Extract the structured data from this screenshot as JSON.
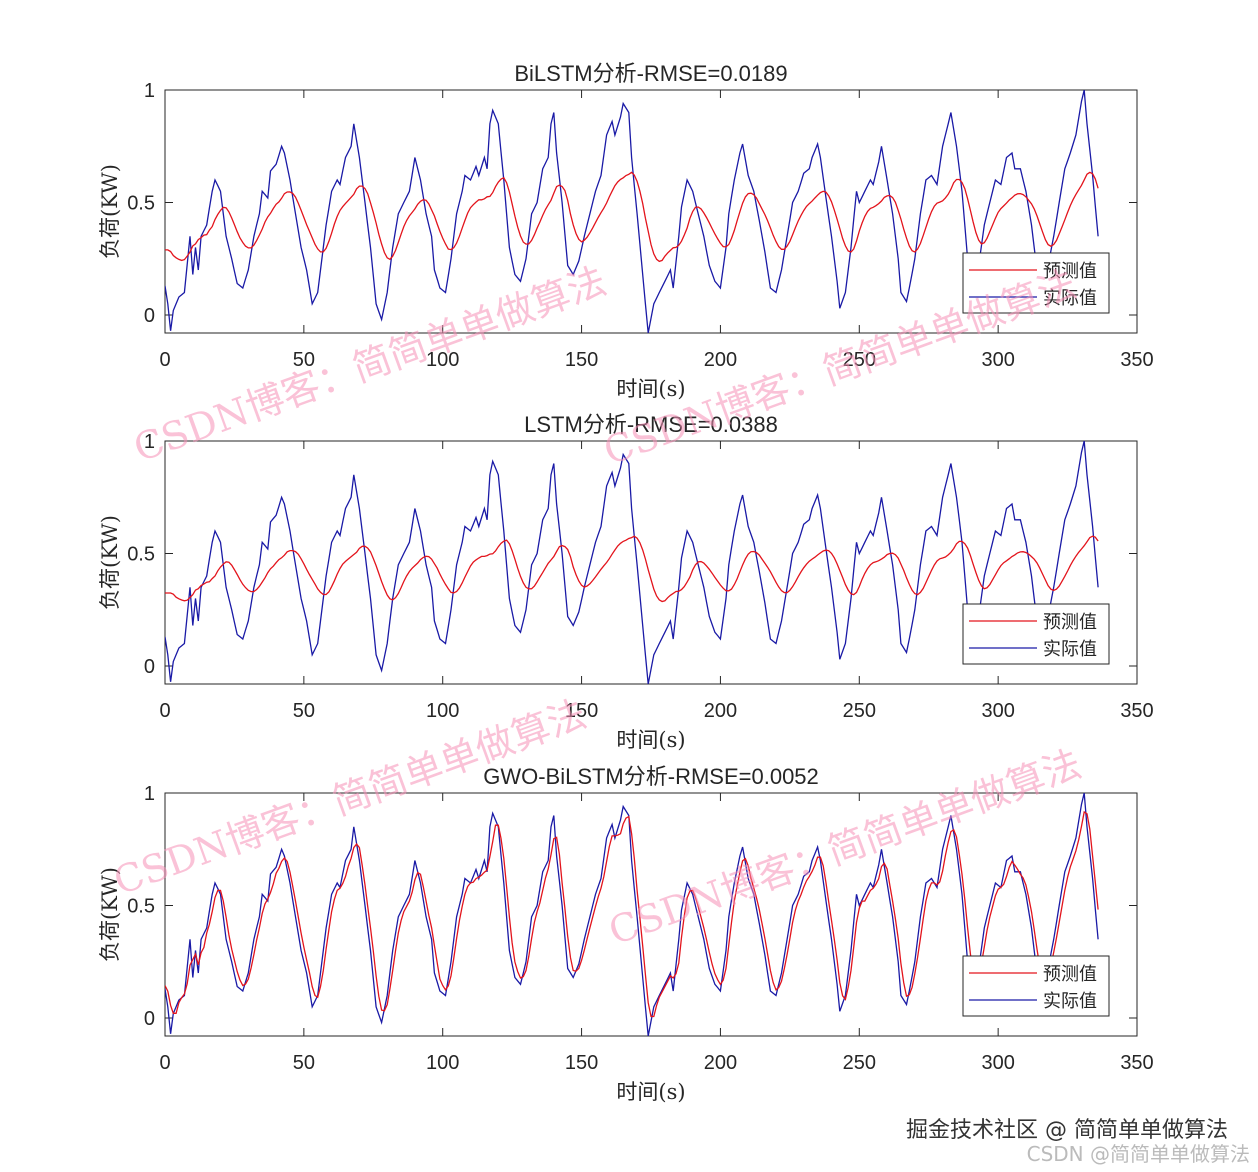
{
  "chart_data": [
    {
      "type": "line",
      "title": "BiLSTM分析-RMSE=0.0189",
      "xlabel": "时间(s)",
      "ylabel": "负荷(KW)",
      "xlim": [
        0,
        350
      ],
      "ylim": [
        -0.08,
        1.0
      ],
      "xticks": [
        0,
        50,
        100,
        150,
        200,
        250,
        300,
        350
      ],
      "yticks": [
        0,
        0.5,
        1
      ],
      "xtick_labels": [
        "0",
        "50",
        "100",
        "150",
        "200",
        "250",
        "300",
        "350"
      ],
      "ytick_labels": [
        "0",
        "0.5",
        "1"
      ],
      "legend_position": "bottom-right",
      "legend": [
        "预测值",
        "实际值"
      ],
      "series": [
        {
          "name": "预测值",
          "color": "#e3141c",
          "amp": 0.45,
          "lag": 3,
          "smooth": 2
        },
        {
          "name": "实际值",
          "color": "#1a1aa6"
        }
      ]
    },
    {
      "type": "line",
      "title": "LSTM分析-RMSE=0.0388",
      "xlabel": "时间(s)",
      "ylabel": "负荷(KW)",
      "xlim": [
        0,
        350
      ],
      "ylim": [
        -0.08,
        1.0
      ],
      "xticks": [
        0,
        50,
        100,
        150,
        200,
        250,
        300,
        350
      ],
      "yticks": [
        0,
        0.5,
        1
      ],
      "xtick_labels": [
        "0",
        "50",
        "100",
        "150",
        "200",
        "250",
        "300",
        "350"
      ],
      "ytick_labels": [
        "0",
        "0.5",
        "1"
      ],
      "legend_position": "bottom-right",
      "legend": [
        "预测值",
        "实际值"
      ],
      "series": [
        {
          "name": "预测值",
          "color": "#e3141c",
          "amp": 0.33,
          "lag": 4,
          "smooth": 2
        },
        {
          "name": "实际值",
          "color": "#1a1aa6"
        }
      ]
    },
    {
      "type": "line",
      "title": "GWO-BiLSTM分析-RMSE=0.0052",
      "xlabel": "时间(s)",
      "ylabel": "负荷(KW)",
      "xlim": [
        0,
        350
      ],
      "ylim": [
        -0.08,
        1.0
      ],
      "xticks": [
        0,
        50,
        100,
        150,
        200,
        250,
        300,
        350
      ],
      "yticks": [
        0,
        0.5,
        1
      ],
      "xtick_labels": [
        "0",
        "50",
        "100",
        "150",
        "200",
        "250",
        "300",
        "350"
      ],
      "ytick_labels": [
        "0",
        "0.5",
        "1"
      ],
      "legend_position": "bottom-right",
      "legend": [
        "预测值",
        "实际值"
      ],
      "series": [
        {
          "name": "预测值",
          "color": "#e3141c",
          "amp": 0.95,
          "lag": 1,
          "smooth": 1
        },
        {
          "name": "实际值",
          "color": "#1a1aa6"
        }
      ]
    }
  ],
  "actual_keypoints": [
    [
      0,
      0.13
    ],
    [
      1,
      0.05
    ],
    [
      2,
      -0.07
    ],
    [
      3,
      0.02
    ],
    [
      5,
      0.08
    ],
    [
      7,
      0.1
    ],
    [
      9,
      0.35
    ],
    [
      10,
      0.18
    ],
    [
      11,
      0.3
    ],
    [
      12,
      0.2
    ],
    [
      13,
      0.35
    ],
    [
      15,
      0.4
    ],
    [
      17,
      0.55
    ],
    [
      18,
      0.6
    ],
    [
      20,
      0.55
    ],
    [
      22,
      0.35
    ],
    [
      24,
      0.25
    ],
    [
      26,
      0.14
    ],
    [
      28,
      0.12
    ],
    [
      30,
      0.2
    ],
    [
      32,
      0.35
    ],
    [
      34,
      0.45
    ],
    [
      35,
      0.55
    ],
    [
      37,
      0.52
    ],
    [
      38,
      0.64
    ],
    [
      40,
      0.67
    ],
    [
      42,
      0.75
    ],
    [
      43,
      0.72
    ],
    [
      45,
      0.6
    ],
    [
      47,
      0.45
    ],
    [
      49,
      0.3
    ],
    [
      51,
      0.2
    ],
    [
      53,
      0.05
    ],
    [
      55,
      0.1
    ],
    [
      57,
      0.3
    ],
    [
      58,
      0.4
    ],
    [
      60,
      0.55
    ],
    [
      62,
      0.6
    ],
    [
      63,
      0.58
    ],
    [
      65,
      0.7
    ],
    [
      67,
      0.75
    ],
    [
      68,
      0.85
    ],
    [
      70,
      0.7
    ],
    [
      72,
      0.5
    ],
    [
      74,
      0.3
    ],
    [
      76,
      0.05
    ],
    [
      78,
      -0.02
    ],
    [
      80,
      0.1
    ],
    [
      82,
      0.3
    ],
    [
      84,
      0.45
    ],
    [
      86,
      0.5
    ],
    [
      88,
      0.55
    ],
    [
      90,
      0.7
    ],
    [
      92,
      0.6
    ],
    [
      94,
      0.45
    ],
    [
      96,
      0.35
    ],
    [
      97,
      0.2
    ],
    [
      99,
      0.12
    ],
    [
      101,
      0.1
    ],
    [
      103,
      0.25
    ],
    [
      105,
      0.45
    ],
    [
      107,
      0.55
    ],
    [
      108,
      0.62
    ],
    [
      110,
      0.6
    ],
    [
      112,
      0.66
    ],
    [
      113,
      0.62
    ],
    [
      115,
      0.7
    ],
    [
      116,
      0.65
    ],
    [
      117,
      0.85
    ],
    [
      118,
      0.91
    ],
    [
      120,
      0.85
    ],
    [
      122,
      0.6
    ],
    [
      124,
      0.3
    ],
    [
      126,
      0.18
    ],
    [
      128,
      0.15
    ],
    [
      130,
      0.25
    ],
    [
      132,
      0.45
    ],
    [
      134,
      0.5
    ],
    [
      136,
      0.65
    ],
    [
      138,
      0.7
    ],
    [
      139,
      0.85
    ],
    [
      140,
      0.9
    ],
    [
      141,
      0.72
    ],
    [
      143,
      0.5
    ],
    [
      145,
      0.22
    ],
    [
      147,
      0.18
    ],
    [
      149,
      0.24
    ],
    [
      151,
      0.35
    ],
    [
      153,
      0.45
    ],
    [
      155,
      0.55
    ],
    [
      157,
      0.62
    ],
    [
      159,
      0.8
    ],
    [
      161,
      0.86
    ],
    [
      162,
      0.8
    ],
    [
      164,
      0.88
    ],
    [
      165,
      0.94
    ],
    [
      167,
      0.9
    ],
    [
      168,
      0.7
    ],
    [
      170,
      0.45
    ],
    [
      172,
      0.18
    ],
    [
      173,
      0.05
    ],
    [
      174,
      -0.08
    ],
    [
      176,
      0.05
    ],
    [
      178,
      0.1
    ],
    [
      180,
      0.15
    ],
    [
      182,
      0.2
    ],
    [
      183,
      0.12
    ],
    [
      185,
      0.35
    ],
    [
      186,
      0.48
    ],
    [
      187,
      0.54
    ],
    [
      188,
      0.6
    ],
    [
      190,
      0.55
    ],
    [
      192,
      0.45
    ],
    [
      194,
      0.35
    ],
    [
      196,
      0.22
    ],
    [
      198,
      0.15
    ],
    [
      200,
      0.12
    ],
    [
      202,
      0.3
    ],
    [
      203,
      0.45
    ],
    [
      205,
      0.6
    ],
    [
      207,
      0.72
    ],
    [
      208,
      0.76
    ],
    [
      210,
      0.62
    ],
    [
      212,
      0.55
    ],
    [
      214,
      0.42
    ],
    [
      216,
      0.28
    ],
    [
      218,
      0.12
    ],
    [
      220,
      0.1
    ],
    [
      222,
      0.2
    ],
    [
      224,
      0.35
    ],
    [
      226,
      0.5
    ],
    [
      228,
      0.55
    ],
    [
      230,
      0.63
    ],
    [
      232,
      0.65
    ],
    [
      233,
      0.7
    ],
    [
      235,
      0.76
    ],
    [
      236,
      0.7
    ],
    [
      238,
      0.52
    ],
    [
      240,
      0.35
    ],
    [
      242,
      0.15
    ],
    [
      243,
      0.03
    ],
    [
      245,
      0.1
    ],
    [
      247,
      0.3
    ],
    [
      249,
      0.55
    ],
    [
      250,
      0.5
    ],
    [
      252,
      0.55
    ],
    [
      254,
      0.6
    ],
    [
      255,
      0.58
    ],
    [
      257,
      0.68
    ],
    [
      258,
      0.75
    ],
    [
      260,
      0.6
    ],
    [
      262,
      0.45
    ],
    [
      264,
      0.25
    ],
    [
      265,
      0.1
    ],
    [
      267,
      0.06
    ],
    [
      268,
      0.12
    ],
    [
      270,
      0.25
    ],
    [
      272,
      0.45
    ],
    [
      274,
      0.6
    ],
    [
      276,
      0.62
    ],
    [
      278,
      0.58
    ],
    [
      280,
      0.75
    ],
    [
      282,
      0.85
    ],
    [
      283,
      0.9
    ],
    [
      285,
      0.75
    ],
    [
      287,
      0.55
    ],
    [
      289,
      0.25
    ],
    [
      291,
      0.12
    ],
    [
      293,
      0.22
    ],
    [
      295,
      0.4
    ],
    [
      297,
      0.5
    ],
    [
      299,
      0.6
    ],
    [
      301,
      0.58
    ],
    [
      303,
      0.7
    ],
    [
      305,
      0.72
    ],
    [
      306,
      0.65
    ],
    [
      308,
      0.65
    ],
    [
      310,
      0.55
    ],
    [
      312,
      0.4
    ],
    [
      314,
      0.2
    ],
    [
      316,
      0.1
    ],
    [
      318,
      0.22
    ],
    [
      320,
      0.35
    ],
    [
      322,
      0.5
    ],
    [
      324,
      0.65
    ],
    [
      326,
      0.72
    ],
    [
      328,
      0.8
    ],
    [
      330,
      0.95
    ],
    [
      331,
      1.0
    ],
    [
      332,
      0.85
    ],
    [
      334,
      0.62
    ],
    [
      336,
      0.35
    ]
  ],
  "watermark": "CSDN博客：简简单单做算法",
  "footer": {
    "main": "掘金技术社区 @ 简简单单做算法",
    "sub": "CSDN @简简单单做算法"
  }
}
